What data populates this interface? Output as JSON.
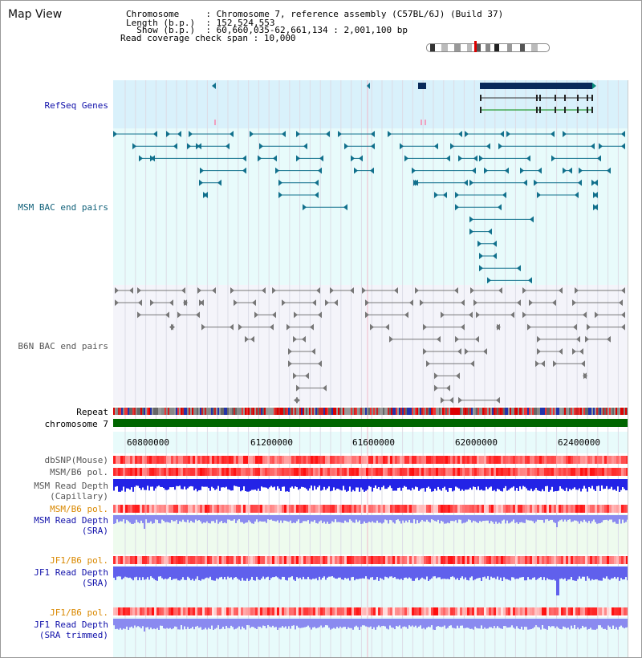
{
  "header": {
    "title": "Map View",
    "rows": [
      {
        "key": "Chromosome     ",
        "value": ": Chromosome 7, reference assembly (C57BL/6J) (Build 37)"
      },
      {
        "key": "Length (b.p.)  ",
        "value": ": 152,524,553"
      },
      {
        "key": "  Show (b.p.)  ",
        "value": ": 60,660,035-62,661,134 : 2,001,100 bp"
      },
      {
        "key": "Read coverage check span",
        "value": ": 10,000"
      }
    ]
  },
  "tracks": {
    "refseq": "RefSeq Genes",
    "msm_bac": "MSM BAC end pairs",
    "b6n_bac": "B6N BAC end pairs",
    "repeat": "Repeat",
    "chromosome": "chromosome 7",
    "dbsnp": "dbSNP(Mouse)",
    "msm_b6_pol_1": "MSM/B6 pol.",
    "msm_depth_cap_1": "MSM Read Depth",
    "msm_depth_cap_2": "(Capillary)",
    "msm_b6_pol_2": "MSM/B6 pol.",
    "msm_depth_sra_1": "MSM Read Depth",
    "msm_depth_sra_2": "(SRA)",
    "jf1_b6_pol_1": "JF1/B6 pol.",
    "jf1_depth_sra_1": "JF1 Read Depth",
    "jf1_depth_sra_2": "(SRA)",
    "jf1_b6_pol_2": "JF1/B6 pol.",
    "jf1_depth_trim_1": "JF1 Read Depth",
    "jf1_depth_trim_2": "(SRA trimmed)"
  },
  "axis": {
    "ticks": [
      "60800000",
      "61200000",
      "61600000",
      "62000000",
      "62400000"
    ]
  },
  "colors": {
    "refseq_bg": "#d9f1fb",
    "msm_bg": "#e8fbfb",
    "b6n_bg": "#f4f4fa",
    "chrom": "#006600",
    "teal": "#11708c",
    "gene": "#0a2a5a",
    "depth_blue": "#2323e6",
    "depth_light": "#8a8af0"
  }
}
